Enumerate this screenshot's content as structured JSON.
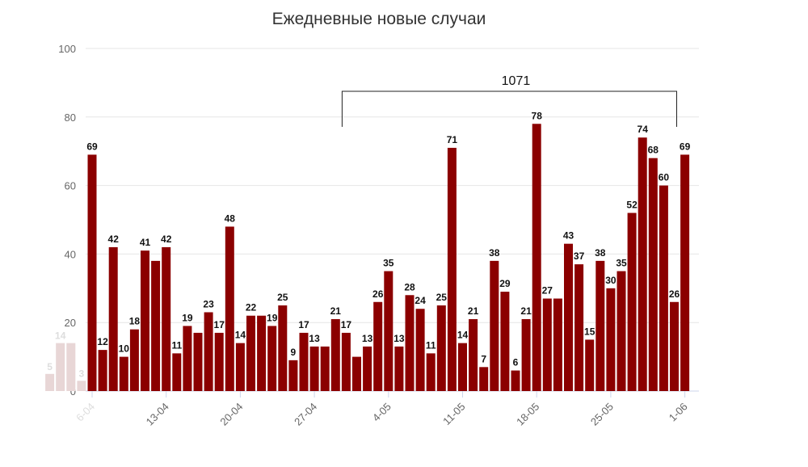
{
  "chart_data": {
    "type": "bar",
    "title": "Ежедневные новые случаи",
    "xlabel": "",
    "ylabel": "",
    "ylim": [
      0,
      100
    ],
    "yticks": [
      0,
      20,
      40,
      60,
      80,
      100
    ],
    "grid": true,
    "color": "#8b0000",
    "faded_color": "#e8d6d6",
    "faded_bars": {
      "values": [
        5,
        14,
        14,
        3
      ],
      "labels": [
        "5",
        "14",
        "",
        "3"
      ]
    },
    "categories": [
      "6-04",
      "7-04",
      "8-04",
      "9-04",
      "10-04",
      "11-04",
      "12-04",
      "13-04",
      "14-04",
      "15-04",
      "16-04",
      "17-04",
      "18-04",
      "19-04",
      "20-04",
      "21-04",
      "22-04",
      "23-04",
      "24-04",
      "25-04",
      "26-04",
      "27-04",
      "28-04",
      "29-04",
      "30-04",
      "1-05",
      "2-05",
      "3-05",
      "4-05",
      "5-05",
      "6-05",
      "7-05",
      "8-05",
      "9-05",
      "10-05",
      "11-05",
      "12-05",
      "13-05",
      "14-05",
      "15-05",
      "16-05",
      "17-05",
      "18-05",
      "19-05",
      "20-05",
      "21-05",
      "22-05",
      "23-05",
      "24-05",
      "25-05",
      "26-05",
      "27-05",
      "28-05",
      "29-05",
      "30-05",
      "31-05",
      "1-06"
    ],
    "xtick_labels": [
      "6-04",
      "13-04",
      "20-04",
      "27-04",
      "4-05",
      "11-05",
      "18-05",
      "25-05",
      "1-06"
    ],
    "values": [
      69,
      12,
      42,
      10,
      18,
      41,
      38,
      42,
      11,
      19,
      17,
      23,
      17,
      48,
      14,
      22,
      22,
      19,
      25,
      9,
      17,
      13,
      13,
      21,
      17,
      10,
      13,
      26,
      35,
      13,
      28,
      24,
      11,
      25,
      71,
      14,
      21,
      7,
      38,
      29,
      6,
      21,
      78,
      27,
      27,
      43,
      37,
      15,
      38,
      30,
      35,
      52,
      74,
      68,
      60,
      26,
      69
    ],
    "labels": [
      "69",
      "12",
      "42",
      "10",
      "18",
      "41",
      "",
      "42",
      "11",
      "19",
      "",
      "23",
      "17",
      "48",
      "14",
      "22",
      "",
      "19",
      "25",
      "9",
      "17",
      "13",
      "",
      "21",
      "17",
      "",
      "13",
      "26",
      "35",
      "13",
      "28",
      "24",
      "11",
      "25",
      "71",
      "14",
      "21",
      "7",
      "38",
      "29",
      "6",
      "21",
      "78",
      "27",
      "",
      "43",
      "37",
      "15",
      "38",
      "30",
      "35",
      "52",
      "74",
      "68",
      "60",
      "26",
      "69"
    ],
    "annotation": {
      "label": "1071",
      "from": "30-04",
      "to": "31-05"
    }
  }
}
